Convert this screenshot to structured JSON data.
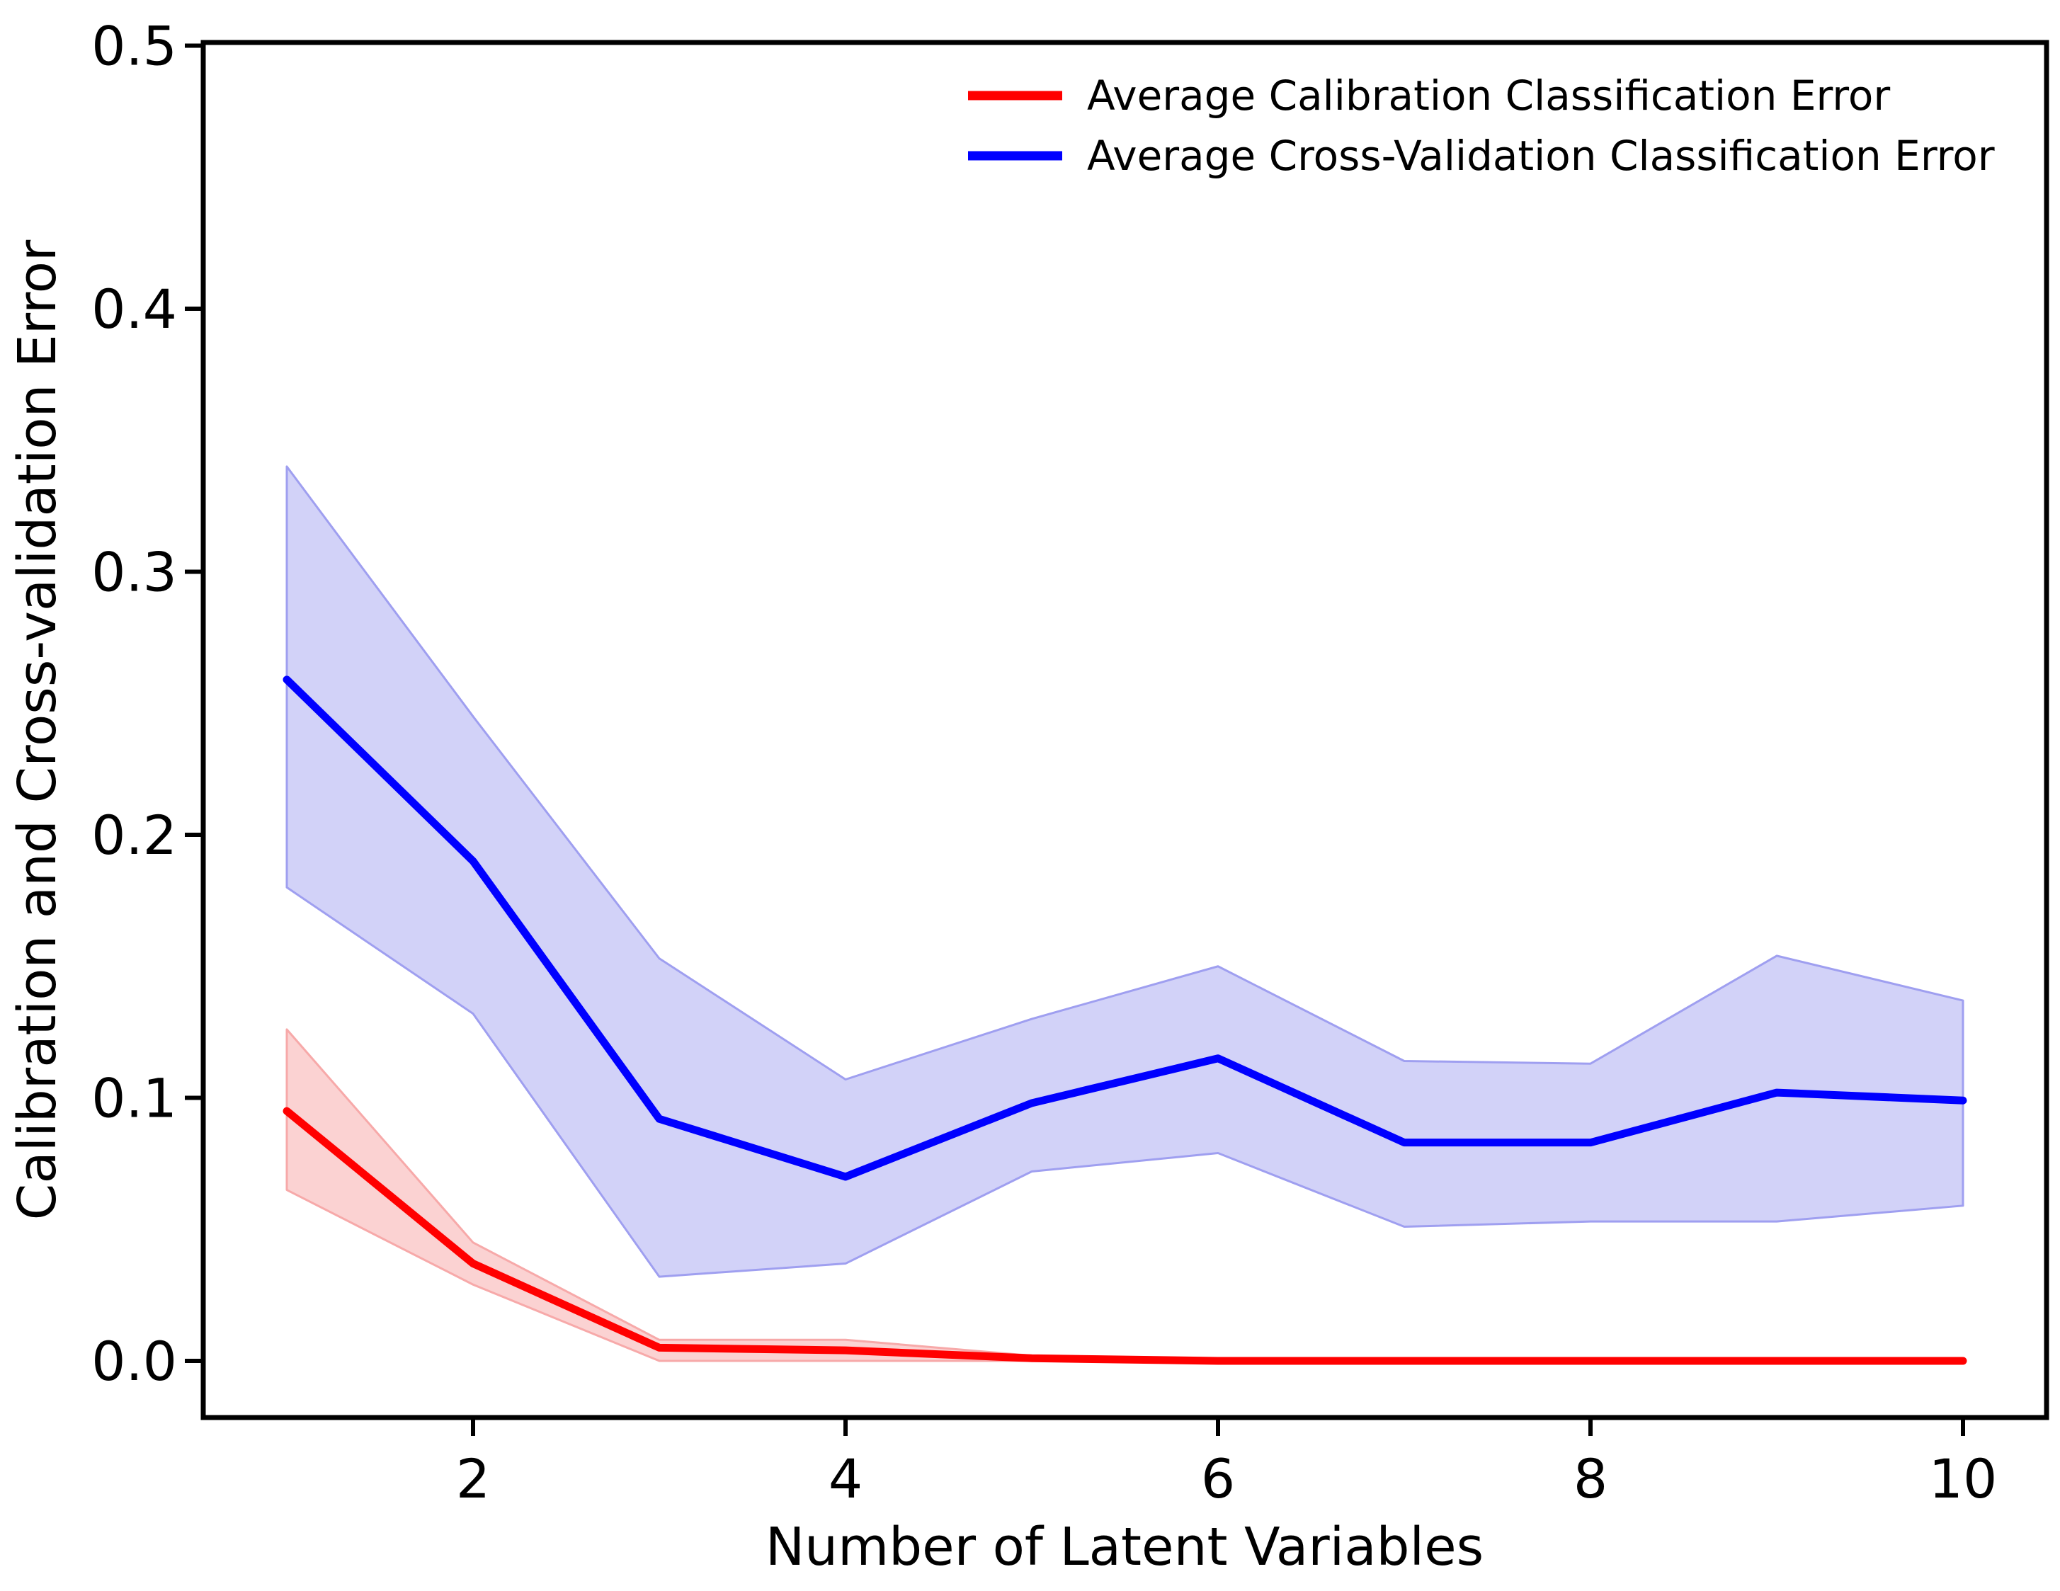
{
  "figure": {
    "background": "#ffffff",
    "spine_color": "#000000"
  },
  "chart_data": {
    "type": "line",
    "title": "",
    "xlabel": "Number of Latent Variables",
    "ylabel": "Calibration and Cross-validation Error",
    "x": [
      1,
      2,
      3,
      4,
      5,
      6,
      7,
      8,
      9,
      10
    ],
    "xticks": [
      2,
      4,
      6,
      8,
      10
    ],
    "ytick_labels": [
      "0.0",
      "0.1",
      "0.2",
      "0.3",
      "0.4",
      "0.5"
    ],
    "ytick_values": [
      0.0,
      0.1,
      0.2,
      0.3,
      0.4,
      0.5
    ],
    "xlim": [
      0.55,
      10.45
    ],
    "ylim": [
      -0.0215,
      0.5015
    ],
    "grid": false,
    "legend_position": "upper right",
    "series": [
      {
        "name": "Average Calibration Classification Error",
        "color": "#ff0000",
        "band_fill": "#fbd2d2",
        "band_edge": "#f7a9a9",
        "values": [
          0.095,
          0.037,
          0.005,
          0.004,
          0.001,
          0.0,
          0.0,
          0.0,
          0.0,
          0.0
        ],
        "band_upper": [
          0.126,
          0.045,
          0.008,
          0.008,
          0.002,
          0.001,
          0.001,
          0.001,
          0.001,
          0.001
        ],
        "band_lower": [
          0.065,
          0.029,
          0.0,
          0.0,
          0.0,
          0.0,
          0.0,
          0.0,
          0.0,
          0.0
        ]
      },
      {
        "name": "Average Cross-Validation Classification Error",
        "color": "#0000ff",
        "band_fill": "#d2d2f8",
        "band_edge": "#9f9ff0",
        "values": [
          0.259,
          0.19,
          0.092,
          0.07,
          0.098,
          0.115,
          0.083,
          0.083,
          0.102,
          0.099
        ],
        "band_upper": [
          0.34,
          0.245,
          0.153,
          0.107,
          0.13,
          0.15,
          0.114,
          0.113,
          0.154,
          0.137
        ],
        "band_lower": [
          0.18,
          0.132,
          0.032,
          0.037,
          0.072,
          0.079,
          0.051,
          0.053,
          0.053,
          0.059
        ]
      }
    ]
  }
}
